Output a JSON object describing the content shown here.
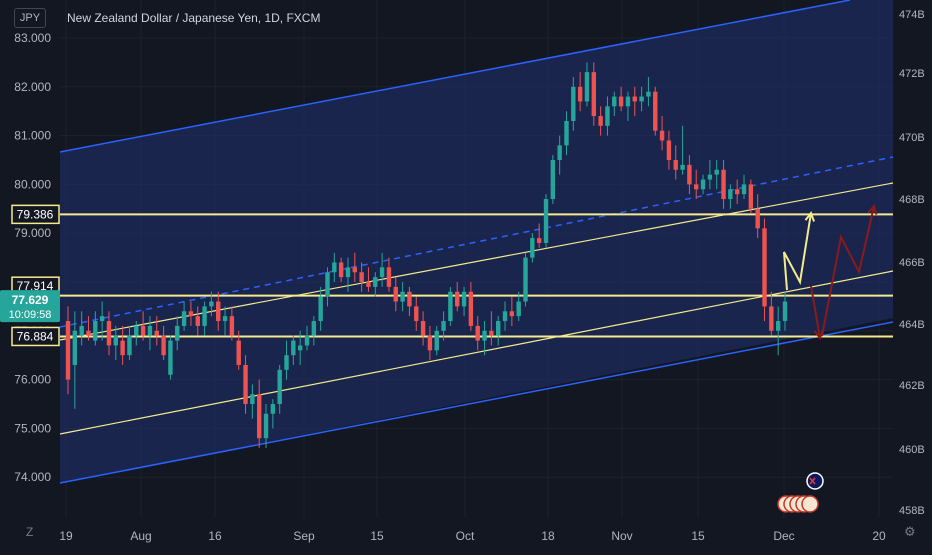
{
  "header": {
    "symbol_button": "JPY",
    "title": "New Zealand Dollar / Japanese Yen, 1D, FXCM",
    "zoom_button": "Z"
  },
  "colors": {
    "background": "#131722",
    "channel_fill": "#1e2c66",
    "channel_line": "#2962ff",
    "yellow": "#f5eb8e",
    "up": "#26a69a",
    "down": "#ef5350",
    "arrow_red": "#8b1a1a"
  },
  "chart_data": {
    "type": "candlestick",
    "title": "New Zealand Dollar / Japanese Yen, 1D, FXCM",
    "left_axis": {
      "ticks": [
        "83.000",
        "82.000",
        "81.000",
        "80.000",
        "79.000",
        "78.000",
        "77.000",
        "76.000",
        "75.000",
        "74.000"
      ]
    },
    "right_axis": {
      "ticks": [
        "474B",
        "472B",
        "470B",
        "468B",
        "466B",
        "464B",
        "462B",
        "460B",
        "458B"
      ]
    },
    "x_axis": {
      "ticks": [
        "19",
        "Aug",
        "16",
        "Sep",
        "15",
        "Oct",
        "18",
        "Nov",
        "15",
        "Dec",
        "20"
      ]
    },
    "price_labels": [
      {
        "value": 79.386,
        "text": "79.386",
        "style": "outline"
      },
      {
        "value": 77.914,
        "text": "77.914",
        "style": "outline"
      },
      {
        "value": 77.629,
        "text": "77.629",
        "style": "current",
        "countdown": "10:09:58"
      },
      {
        "value": 76.884,
        "text": "76.884",
        "style": "outline"
      }
    ],
    "horizontal_levels": [
      79.386,
      77.72,
      76.884
    ],
    "candles": [
      [
        77.2,
        77.5,
        75.7,
        76.0
      ],
      [
        76.3,
        77.4,
        75.4,
        77.0
      ],
      [
        76.9,
        77.4,
        76.7,
        77.1
      ],
      [
        77.0,
        77.3,
        76.8,
        76.9
      ],
      [
        76.8,
        77.4,
        76.7,
        77.2
      ],
      [
        77.2,
        77.6,
        76.8,
        77.3
      ],
      [
        77.2,
        77.4,
        76.5,
        76.7
      ],
      [
        76.7,
        77.1,
        76.4,
        76.9
      ],
      [
        76.8,
        77.1,
        76.3,
        76.5
      ],
      [
        76.5,
        77.1,
        76.4,
        76.9
      ],
      [
        76.9,
        77.2,
        76.7,
        77.1
      ],
      [
        77.1,
        77.4,
        76.8,
        76.9
      ],
      [
        76.9,
        77.3,
        76.6,
        77.1
      ],
      [
        77.0,
        77.3,
        76.7,
        76.9
      ],
      [
        76.9,
        77.1,
        76.4,
        76.5
      ],
      [
        76.1,
        76.9,
        76.0,
        76.8
      ],
      [
        76.8,
        77.3,
        76.6,
        77.1
      ],
      [
        77.1,
        77.6,
        77.0,
        77.4
      ],
      [
        77.4,
        77.6,
        77.1,
        77.3
      ],
      [
        77.3,
        77.5,
        76.9,
        77.1
      ],
      [
        77.1,
        77.6,
        76.9,
        77.5
      ],
      [
        77.5,
        77.8,
        77.3,
        77.6
      ],
      [
        77.6,
        77.8,
        77.0,
        77.2
      ],
      [
        77.2,
        77.5,
        76.9,
        77.3
      ],
      [
        77.3,
        77.5,
        76.8,
        76.9
      ],
      [
        76.8,
        77.0,
        76.2,
        76.3
      ],
      [
        76.3,
        76.5,
        75.3,
        75.5
      ],
      [
        75.5,
        75.9,
        75.2,
        75.7
      ],
      [
        75.7,
        76.0,
        74.6,
        74.8
      ],
      [
        74.8,
        75.5,
        74.6,
        75.3
      ],
      [
        75.3,
        75.6,
        75.0,
        75.5
      ],
      [
        75.5,
        76.3,
        75.3,
        76.2
      ],
      [
        76.2,
        76.8,
        76.0,
        76.5
      ],
      [
        76.5,
        76.9,
        76.3,
        76.8
      ],
      [
        76.6,
        77.0,
        76.3,
        76.7
      ],
      [
        76.7,
        77.1,
        76.6,
        76.9
      ],
      [
        76.9,
        77.3,
        76.7,
        77.2
      ],
      [
        77.2,
        77.9,
        77.0,
        77.7
      ],
      [
        77.7,
        78.3,
        77.5,
        78.2
      ],
      [
        78.2,
        78.6,
        78.0,
        78.4
      ],
      [
        78.4,
        78.5,
        78.0,
        78.1
      ],
      [
        78.1,
        78.5,
        77.8,
        78.3
      ],
      [
        78.3,
        78.6,
        78.0,
        78.2
      ],
      [
        78.2,
        78.4,
        77.8,
        78.0
      ],
      [
        78.0,
        78.3,
        77.8,
        77.9
      ],
      [
        77.9,
        78.2,
        77.7,
        78.1
      ],
      [
        78.1,
        78.6,
        77.9,
        78.3
      ],
      [
        78.3,
        78.5,
        77.8,
        77.9
      ],
      [
        77.9,
        78.1,
        77.4,
        77.6
      ],
      [
        77.6,
        78.0,
        77.4,
        77.8
      ],
      [
        77.8,
        77.9,
        77.3,
        77.5
      ],
      [
        77.5,
        77.7,
        77.0,
        77.2
      ],
      [
        77.2,
        77.4,
        76.7,
        76.9
      ],
      [
        76.9,
        77.1,
        76.4,
        76.6
      ],
      [
        76.6,
        77.1,
        76.5,
        77.0
      ],
      [
        77.0,
        77.4,
        76.8,
        77.2
      ],
      [
        77.2,
        77.9,
        77.1,
        77.8
      ],
      [
        77.8,
        78.0,
        77.4,
        77.5
      ],
      [
        77.5,
        77.9,
        77.3,
        77.8
      ],
      [
        77.8,
        78.0,
        77.0,
        77.1
      ],
      [
        77.1,
        77.3,
        76.6,
        76.8
      ],
      [
        76.8,
        77.2,
        76.5,
        77.0
      ],
      [
        77.0,
        77.4,
        76.7,
        76.9
      ],
      [
        76.9,
        77.3,
        76.7,
        77.2
      ],
      [
        77.2,
        77.6,
        77.0,
        77.4
      ],
      [
        77.4,
        77.7,
        77.1,
        77.3
      ],
      [
        77.3,
        77.8,
        77.2,
        77.6
      ],
      [
        77.6,
        78.6,
        77.5,
        78.5
      ],
      [
        78.5,
        79.0,
        78.4,
        78.9
      ],
      [
        78.9,
        79.2,
        78.7,
        78.8
      ],
      [
        78.8,
        79.8,
        78.7,
        79.7
      ],
      [
        79.7,
        80.6,
        79.6,
        80.5
      ],
      [
        80.5,
        81.0,
        80.2,
        80.8
      ],
      [
        80.8,
        81.5,
        80.6,
        81.3
      ],
      [
        81.3,
        82.2,
        81.1,
        82.0
      ],
      [
        82.0,
        82.3,
        81.5,
        81.7
      ],
      [
        81.7,
        82.5,
        81.6,
        82.3
      ],
      [
        82.3,
        82.5,
        81.2,
        81.4
      ],
      [
        81.4,
        81.6,
        81.0,
        81.2
      ],
      [
        81.2,
        81.8,
        81.0,
        81.6
      ],
      [
        81.6,
        81.9,
        81.4,
        81.8
      ],
      [
        81.8,
        82.0,
        81.5,
        81.6
      ],
      [
        81.6,
        81.9,
        81.3,
        81.8
      ],
      [
        81.8,
        82.0,
        81.4,
        81.7
      ],
      [
        81.7,
        82.0,
        81.5,
        81.8
      ],
      [
        81.8,
        82.2,
        81.6,
        81.9
      ],
      [
        81.9,
        82.0,
        81.0,
        81.1
      ],
      [
        81.1,
        81.4,
        80.7,
        80.9
      ],
      [
        80.9,
        81.1,
        80.3,
        80.5
      ],
      [
        80.5,
        80.8,
        80.1,
        80.3
      ],
      [
        80.3,
        81.2,
        80.2,
        80.4
      ],
      [
        80.4,
        80.6,
        79.8,
        80.0
      ],
      [
        80.0,
        80.3,
        79.7,
        79.9
      ],
      [
        79.9,
        80.2,
        79.8,
        80.1
      ],
      [
        80.1,
        80.5,
        79.9,
        80.2
      ],
      [
        80.2,
        80.5,
        79.9,
        80.3
      ],
      [
        80.3,
        80.5,
        79.5,
        79.7
      ],
      [
        79.7,
        80.0,
        79.5,
        79.9
      ],
      [
        79.9,
        80.1,
        79.6,
        79.8
      ],
      [
        79.8,
        80.2,
        79.7,
        80.0
      ],
      [
        80.0,
        80.1,
        79.4,
        79.5
      ],
      [
        79.5,
        79.8,
        78.9,
        79.1
      ],
      [
        79.1,
        79.3,
        77.2,
        77.5
      ],
      [
        77.5,
        77.8,
        76.9,
        77.0
      ],
      [
        77.0,
        77.5,
        76.5,
        77.2
      ],
      [
        77.2,
        77.8,
        77.0,
        77.6
      ]
    ]
  }
}
